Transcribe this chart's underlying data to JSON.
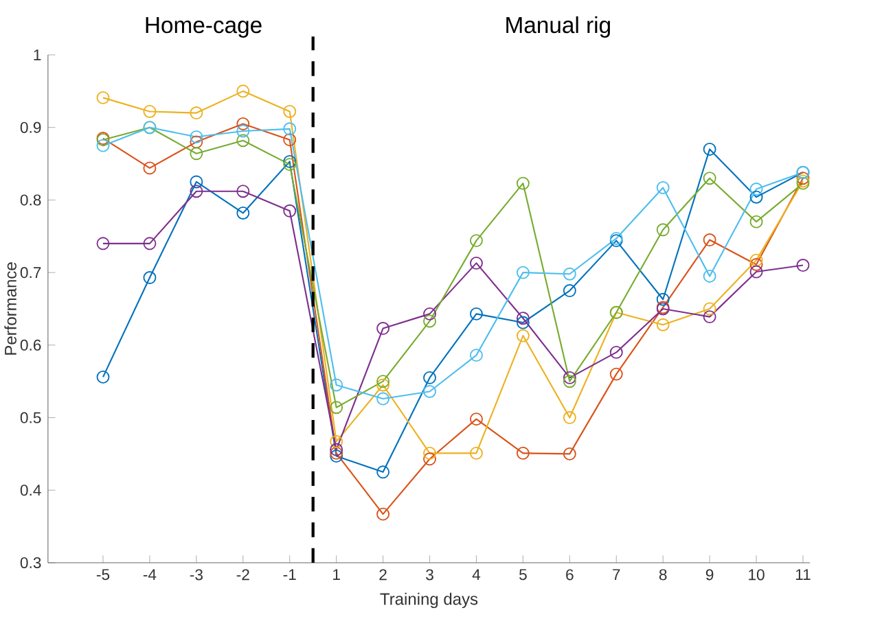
{
  "chart_data": {
    "type": "line",
    "xlabel": "Training days",
    "ylabel": "Performance",
    "categories": [
      "-5",
      "-4",
      "-3",
      "-2",
      "-1",
      "1",
      "2",
      "3",
      "4",
      "5",
      "6",
      "7",
      "8",
      "9",
      "10",
      "11"
    ],
    "ylim": [
      0.3,
      1
    ],
    "yticks": [
      0.3,
      0.4,
      0.5,
      0.6,
      0.7,
      0.8,
      0.9,
      1
    ],
    "marker": "circle",
    "line_style": "solid",
    "grid": false,
    "annotations": [
      "Home-cage",
      "Manual rig"
    ],
    "series": [
      {
        "color": "#0072bd",
        "values": [
          0.556,
          0.693,
          0.825,
          0.782,
          0.853,
          0.447,
          0.425,
          0.555,
          0.643,
          0.631,
          0.675,
          0.744,
          0.663,
          0.87,
          0.804,
          0.838
        ]
      },
      {
        "color": "#d95319",
        "values": [
          0.885,
          0.844,
          0.88,
          0.905,
          0.883,
          0.451,
          0.367,
          0.443,
          0.498,
          0.451,
          0.45,
          0.56,
          0.652,
          0.745,
          0.711,
          0.83
        ]
      },
      {
        "color": "#edb120",
        "values": [
          0.941,
          0.922,
          0.92,
          0.95,
          0.922,
          0.467,
          0.545,
          0.451,
          0.451,
          0.613,
          0.5,
          0.645,
          0.628,
          0.65,
          0.717,
          0.826
        ]
      },
      {
        "color": "#7e2f8e",
        "values": [
          0.74,
          0.74,
          0.812,
          0.812,
          0.785,
          0.456,
          0.623,
          0.643,
          0.713,
          0.637,
          0.555,
          0.59,
          0.65,
          0.639,
          0.701,
          0.71
        ]
      },
      {
        "color": "#77ac30",
        "values": [
          0.883,
          0.9,
          0.864,
          0.882,
          0.849,
          0.514,
          0.55,
          0.633,
          0.744,
          0.823,
          0.55,
          0.645,
          0.759,
          0.83,
          0.77,
          0.823
        ]
      },
      {
        "color": "#4dbeee",
        "values": [
          0.875,
          0.9,
          0.887,
          0.895,
          0.898,
          0.545,
          0.526,
          0.536,
          0.586,
          0.7,
          0.698,
          0.747,
          0.817,
          0.695,
          0.815,
          0.838
        ]
      }
    ]
  }
}
